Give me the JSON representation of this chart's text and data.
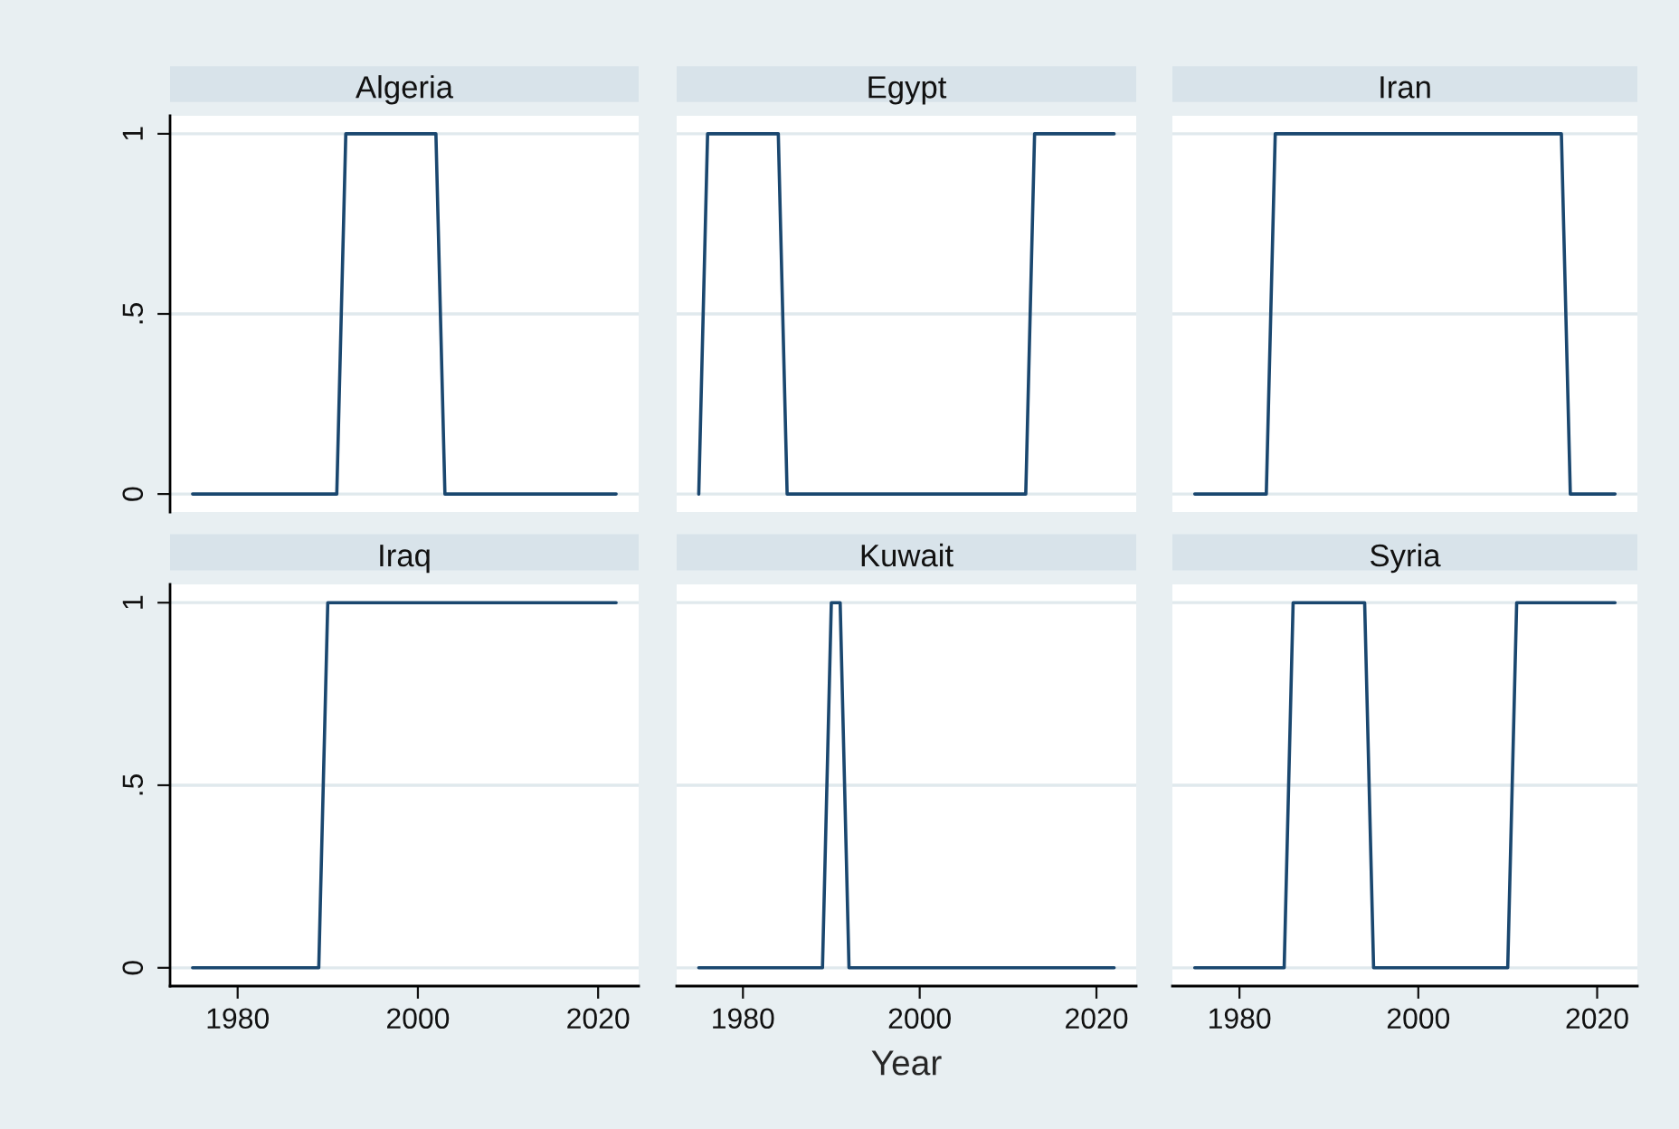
{
  "chart_data": [
    {
      "type": "line",
      "title": "Algeria",
      "x": [
        1975,
        1991,
        1992,
        2002,
        2003,
        2022
      ],
      "values": [
        0,
        0,
        1,
        1,
        0,
        0
      ],
      "color": "#1a476f",
      "xlim": [
        1972.5,
        2024.5
      ],
      "ylim": [
        -0.05,
        1.05
      ],
      "yticks": [
        0,
        {
          "value": 0.5,
          "label": ".5"
        },
        1
      ],
      "grid": "y",
      "tick_labels": "y"
    },
    {
      "type": "line",
      "title": "Egypt",
      "x": [
        1975,
        1976,
        1984,
        1985,
        2012,
        2013,
        2022
      ],
      "values": [
        0,
        1,
        1,
        0,
        0,
        1,
        1
      ],
      "color": "#1a476f",
      "xlim": [
        1972.5,
        2024.5
      ],
      "ylim": [
        -0.05,
        1.05
      ],
      "yticks": [
        0,
        0.5,
        1
      ],
      "grid": "y",
      "tick_labels": false
    },
    {
      "type": "line",
      "title": "Iran",
      "x": [
        1975,
        1983,
        1984,
        2016,
        2017,
        2022
      ],
      "values": [
        0,
        0,
        1,
        1,
        0,
        0
      ],
      "color": "#1a476f",
      "xlim": [
        1972.5,
        2024.5
      ],
      "ylim": [
        -0.05,
        1.05
      ],
      "yticks": [
        0,
        0.5,
        1
      ],
      "grid": "y",
      "tick_labels": false
    },
    {
      "type": "line",
      "title": "Iraq",
      "x": [
        1975,
        1989,
        1990,
        2022
      ],
      "values": [
        0,
        0,
        1,
        1
      ],
      "color": "#1a476f",
      "xlim": [
        1972.5,
        2024.5
      ],
      "ylim": [
        -0.05,
        1.05
      ],
      "xticks": [
        1980,
        2000,
        2020
      ],
      "yticks": [
        0,
        {
          "value": 0.5,
          "label": ".5"
        },
        1
      ],
      "grid": "y"
    },
    {
      "type": "line",
      "title": "Kuwait",
      "xlabel": "Year",
      "x": [
        1975,
        1989,
        1990,
        1991,
        1992,
        2022
      ],
      "values": [
        0,
        0,
        1,
        1,
        0,
        0
      ],
      "color": "#1a476f",
      "xlim": [
        1972.5,
        2024.5
      ],
      "ylim": [
        -0.05,
        1.05
      ],
      "xticks": [
        1980,
        2000,
        2020
      ],
      "yticks": [
        0,
        0.5,
        1
      ],
      "grid": "y",
      "tick_labels": "x"
    },
    {
      "type": "line",
      "title": "Syria",
      "x": [
        1975,
        1985,
        1986,
        1994,
        1995,
        2010,
        2011,
        2022
      ],
      "values": [
        0,
        0,
        1,
        1,
        0,
        0,
        1,
        1
      ],
      "color": "#1a476f",
      "xlim": [
        1972.5,
        2024.5
      ],
      "ylim": [
        -0.05,
        1.05
      ],
      "xticks": [
        1980,
        2000,
        2020
      ],
      "yticks": [
        0,
        0.5,
        1
      ],
      "grid": "y",
      "tick_labels": "x"
    }
  ]
}
